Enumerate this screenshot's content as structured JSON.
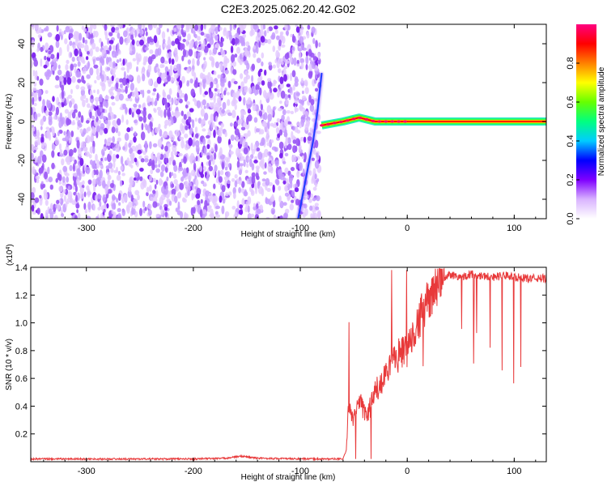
{
  "title": "C2E3.2025.062.20.42.G02",
  "chart_data": [
    {
      "type": "heatmap",
      "xlabel": "Height of straight line (km)",
      "ylabel": "Frequency (Hz)",
      "xlim": [
        -352,
        130
      ],
      "ylim": [
        -50,
        50
      ],
      "x_ticks": [
        -300,
        -200,
        -100,
        0,
        100
      ],
      "x_tick_labels": [
        "-300",
        "-200",
        "-100",
        "0",
        "100"
      ],
      "y_ticks": [
        -40,
        -20,
        0,
        20,
        40
      ],
      "y_tick_labels": [
        "-40",
        "-20",
        "0",
        "20",
        "40"
      ],
      "grid": false,
      "colorbar": {
        "label": "Normalized spectral amplitude",
        "range": [
          0,
          1
        ],
        "ticks": [
          0.0,
          0.2,
          0.4,
          0.6,
          0.8
        ],
        "tick_labels": [
          "0.0",
          "0.2",
          "0.4",
          "0.6",
          "0.8"
        ],
        "colors": [
          "#ffffff",
          "#d9b3ff",
          "#7f00ff",
          "#0000ff",
          "#00ccff",
          "#00ff80",
          "#66ff00",
          "#ffff00",
          "#ff8000",
          "#ff0000",
          "#ff0080"
        ]
      },
      "features": [
        {
          "name": "noise",
          "x_range": [
            -352,
            -82
          ],
          "y_range": [
            -50,
            50
          ],
          "amplitude": 0.25
        },
        {
          "name": "steep streak",
          "points": [
            [
              -102,
              -50
            ],
            [
              -95,
              -30
            ],
            [
              -88,
              -10
            ],
            [
              -84,
              5
            ],
            [
              -80,
              25
            ]
          ],
          "amplitude": 0.4
        },
        {
          "name": "signal",
          "points": [
            [
              -80,
              -2
            ],
            [
              -60,
              0
            ],
            [
              -45,
              2
            ],
            [
              -30,
              0
            ],
            [
              0,
              0
            ],
            [
              130,
              0
            ]
          ],
          "amplitude": 1.0
        }
      ]
    },
    {
      "type": "line",
      "xlabel": "Height of straight line (km)",
      "ylabel": "SNR (10 * v/v)",
      "multiplier": "(x10",
      "multiplier_exp": "4",
      "multiplier_close": ")",
      "xlim": [
        -352,
        130
      ],
      "ylim": [
        0,
        1.4
      ],
      "x_ticks": [
        -300,
        -200,
        -100,
        0,
        100
      ],
      "x_tick_labels": [
        "-300",
        "-200",
        "-100",
        "0",
        "100"
      ],
      "y_ticks": [
        0.2,
        0.4,
        0.6,
        0.8,
        1.0,
        1.2,
        1.4
      ],
      "y_tick_labels": [
        "0.2",
        "0.4",
        "0.6",
        "0.8",
        "1.0",
        "1.2",
        "1.4"
      ],
      "grid": false,
      "series": [
        {
          "color": "#e8393a",
          "x": [
            -352,
            -300,
            -250,
            -200,
            -170,
            -155,
            -140,
            -100,
            -75,
            -60,
            -57,
            -55,
            -52,
            -50,
            -45,
            -40,
            -35,
            -30,
            -25,
            -20,
            -15,
            -10,
            -5,
            0,
            5,
            10,
            15,
            20,
            25,
            30,
            40,
            50,
            60,
            70,
            80,
            90,
            100,
            110,
            120,
            130
          ],
          "values": [
            0.02,
            0.02,
            0.02,
            0.02,
            0.025,
            0.04,
            0.025,
            0.02,
            0.02,
            0.02,
            0.08,
            0.4,
            0.35,
            0.3,
            0.45,
            0.35,
            0.38,
            0.5,
            0.55,
            0.6,
            0.7,
            0.75,
            0.8,
            0.78,
            0.95,
            1.0,
            1.1,
            1.15,
            1.25,
            1.3,
            1.35,
            1.33,
            1.35,
            1.34,
            1.33,
            1.34,
            1.33,
            1.32,
            1.32,
            1.32
          ]
        }
      ]
    }
  ]
}
